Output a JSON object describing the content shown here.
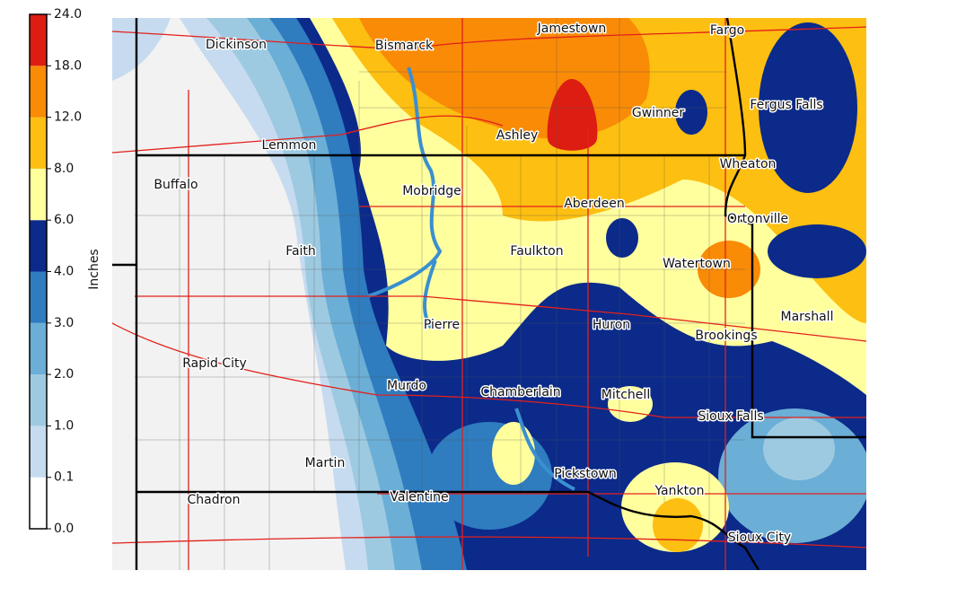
{
  "legend": {
    "title": "Inches",
    "ticks": [
      {
        "value": 0,
        "label": "0.0"
      },
      {
        "value": 0.1,
        "label": "0.1"
      },
      {
        "value": 1,
        "label": "1.0"
      },
      {
        "value": 2,
        "label": "2.0"
      },
      {
        "value": 3,
        "label": "3.0"
      },
      {
        "value": 4,
        "label": "4.0"
      },
      {
        "value": 6,
        "label": "6.0"
      },
      {
        "value": 8,
        "label": "8.0"
      },
      {
        "value": 12,
        "label": "12.0"
      },
      {
        "value": 18,
        "label": "18.0"
      },
      {
        "value": 24,
        "label": "24.0"
      }
    ],
    "colors": [
      "#ffffff",
      "#c6dbef",
      "#9ecae1",
      "#6baed6",
      "#2f7cbf",
      "#0b2a8a",
      "#ffff9e",
      "#fdbf11",
      "#f98b07",
      "#dd1d12"
    ]
  },
  "places": [
    "Dickinson",
    "Bismarck",
    "Jamestown",
    "Fargo",
    "Fergus Falls",
    "Gwinner",
    "Ashley",
    "Lemmon",
    "Wheaton",
    "Buffalo",
    "Mobridge",
    "Aberdeen",
    "Ortonville",
    "Faith",
    "Faulkton",
    "Watertown",
    "Marshall",
    "Pierre",
    "Huron",
    "Brookings",
    "Rapid City",
    "Murdo",
    "Chamberlain",
    "Mitchell",
    "Sioux Falls",
    "Martin",
    "Pickstown",
    "Yankton",
    "Chadron",
    "Valentine",
    "Sioux City"
  ]
}
